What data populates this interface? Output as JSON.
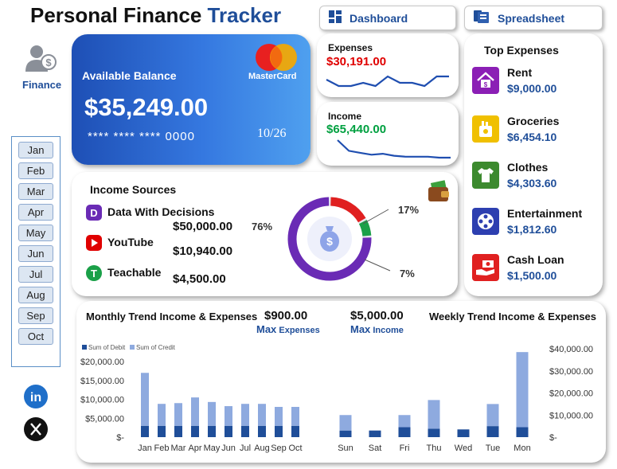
{
  "header": {
    "title_part1": "Personal Finance",
    "title_part2": "Tracker",
    "dashboard_label": "Dashboard",
    "spreadsheet_label": "Spreadsheet"
  },
  "sidebar": {
    "finance_label": "Finance",
    "months": [
      "Jan",
      "Feb",
      "Mar",
      "Apr",
      "May",
      "Jun",
      "Jul",
      "Aug",
      "Sep",
      "Oct"
    ],
    "social": [
      "linkedin-icon",
      "x-icon"
    ]
  },
  "balance_card": {
    "label": "Available Balance",
    "brand": "MasterCard",
    "amount": "$35,249.00",
    "card_number": "**** **** **** 0000",
    "expiry": "10/26"
  },
  "expenses_card": {
    "label": "Expenses",
    "amount": "$30,191.00",
    "color": "#e00000"
  },
  "income_card": {
    "label": "Income",
    "amount": "$65,440.00",
    "color": "#00a040"
  },
  "top_expenses": {
    "title": "Top Expenses",
    "items": [
      {
        "name": "Rent",
        "amount": "$9,000.00",
        "icon": "home-icon",
        "color": "#8b1fb5"
      },
      {
        "name": "Groceries",
        "amount": "$6,454.10",
        "icon": "grocery-bag-icon",
        "color": "#f0c000"
      },
      {
        "name": "Clothes",
        "amount": "$4,303.60",
        "icon": "shirt-icon",
        "color": "#3c8a2e"
      },
      {
        "name": "Entertainment",
        "amount": "$1,812.60",
        "icon": "film-reel-icon",
        "color": "#2d3fb0"
      },
      {
        "name": "Cash Loan",
        "amount": "$1,500.00",
        "icon": "hand-cash-icon",
        "color": "#e02020"
      }
    ]
  },
  "income_sources": {
    "title": "Income Sources",
    "items": [
      {
        "name": "Data With Decisions",
        "amount": "$50,000.00",
        "icon": "ddd-logo-icon",
        "color": "#6a2bb5"
      },
      {
        "name": "YouTube",
        "amount": "$10,940.00",
        "icon": "youtube-icon",
        "color": "#e00000"
      },
      {
        "name": "Teachable",
        "amount": "$4,500.00",
        "icon": "teachable-icon",
        "color": "#1aa048"
      }
    ],
    "donut_labels": {
      "left": "76%",
      "top_right": "17%",
      "bottom_right": "7%"
    }
  },
  "trend_panel": {
    "monthly_title": "Monthly Trend Income & Expenses",
    "weekly_title": "Weekly Trend Income & Expenses",
    "max_expenses_value": "$900.00",
    "max_expenses_label_word1": "Max",
    "max_expenses_label_word2": "Expenses",
    "max_income_value": "$5,000.00",
    "max_income_label_word1": "Max",
    "max_income_label_word2": "Income"
  },
  "colors": {
    "accent": "#1f4e99",
    "debit": "#1f4e99",
    "credit": "#8eaadf",
    "donut_purple": "#6a2bb5",
    "donut_red": "#e02020",
    "donut_green": "#1aa048"
  },
  "chart_data": [
    {
      "type": "line",
      "name": "expenses-sparkline",
      "values": [
        4,
        2,
        2,
        3,
        2,
        5,
        3,
        3,
        2,
        5,
        5
      ]
    },
    {
      "type": "line",
      "name": "income-sparkline",
      "values": [
        23,
        12,
        10,
        8,
        9,
        7,
        6,
        6,
        6,
        5,
        5
      ]
    },
    {
      "type": "pie",
      "name": "income-sources-donut",
      "categories": [
        "Data With Decisions",
        "YouTube",
        "Teachable"
      ],
      "values": [
        76,
        17,
        7
      ]
    },
    {
      "type": "bar",
      "stacked": true,
      "categories": [
        "Jan",
        "Feb",
        "Mar",
        "Apr",
        "May",
        "Jun",
        "Jul",
        "Aug",
        "Sep",
        "Oct"
      ],
      "series": [
        {
          "name": "Sum of Debit",
          "values": [
            3000,
            3000,
            3000,
            3000,
            3000,
            3000,
            3000,
            3000,
            3000,
            3000
          ]
        },
        {
          "name": "Sum of Credit",
          "values": [
            14000,
            5800,
            6000,
            7500,
            6300,
            5200,
            5800,
            5800,
            5000,
            5000
          ]
        }
      ],
      "yticks": [
        "$-",
        "$5,000.00",
        "$10,000.00",
        "$15,000.00",
        "$20,000.00"
      ],
      "ylim": [
        0,
        20000
      ],
      "legend": "top-left"
    },
    {
      "type": "bar",
      "stacked": true,
      "categories": [
        "Sun",
        "Sat",
        "Fri",
        "Thu",
        "Wed",
        "Tue",
        "Mon"
      ],
      "series": [
        {
          "name": "Sum of Debit",
          "values": [
            3000,
            3000,
            4500,
            3800,
            3500,
            5000,
            4500
          ]
        },
        {
          "name": "Sum of Credit",
          "values": [
            7000,
            0,
            5500,
            13000,
            0,
            10000,
            34000
          ]
        }
      ],
      "yticks": [
        "$-",
        "$10,000.00",
        "$20,000.00",
        "$30,000.00",
        "$40,000.00"
      ],
      "ylim": [
        0,
        40000
      ],
      "axis": "right"
    }
  ]
}
